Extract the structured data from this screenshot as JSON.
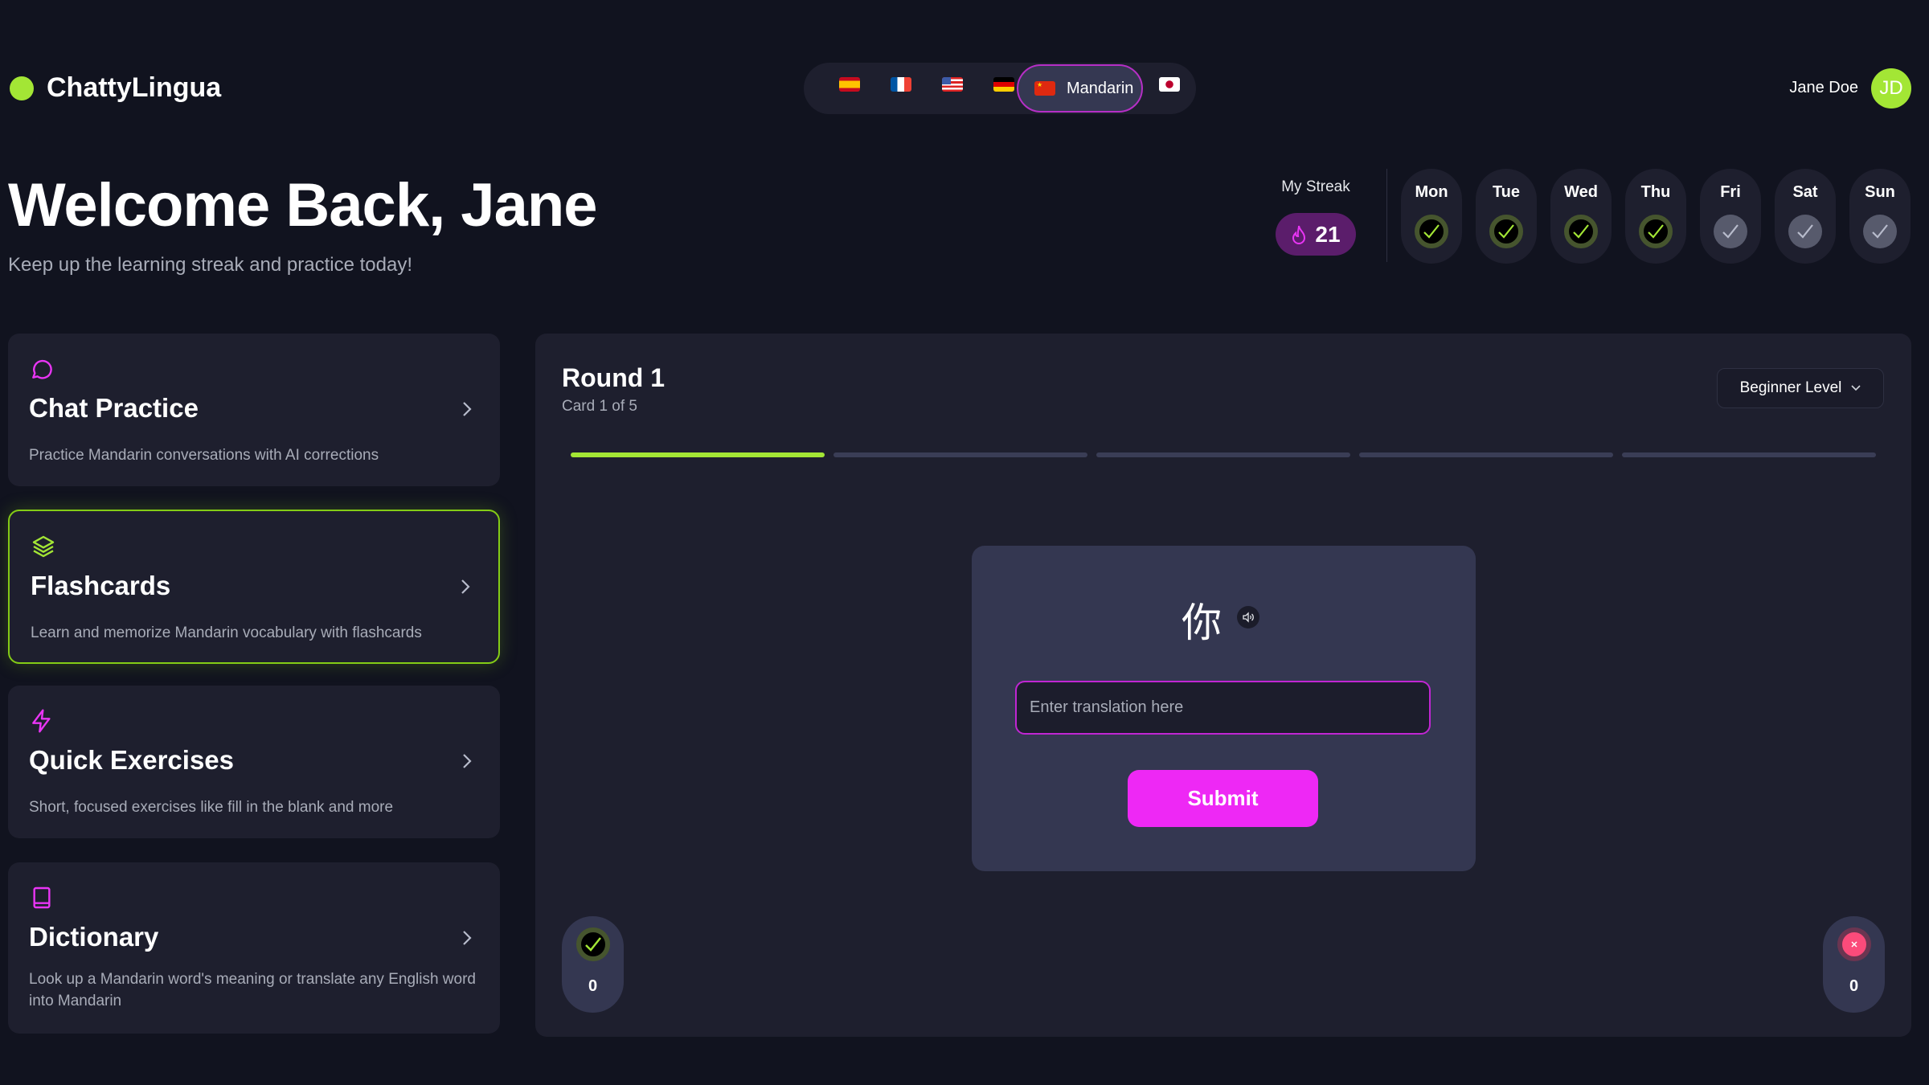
{
  "app": {
    "name": "ChattyLingua",
    "accent": "#a3e635",
    "brand_pink": "#ee28f5"
  },
  "languages": [
    {
      "flag": "spain-flag-icon"
    },
    {
      "flag": "france-flag-icon"
    },
    {
      "flag": "usa-flag-icon"
    },
    {
      "flag": "germany-flag-icon"
    },
    {
      "flag": "china-flag-icon",
      "label": "Mandarin",
      "active": true
    },
    {
      "flag": "japan-flag-icon"
    }
  ],
  "user": {
    "name": "Jane Doe",
    "initials": "JD"
  },
  "hero": {
    "title": "Welcome Back, Jane",
    "subtitle": "Keep up the learning streak and practice today!"
  },
  "streak": {
    "label": "My Streak",
    "count": "21",
    "days": [
      {
        "day": "Mon",
        "done": true
      },
      {
        "day": "Tue",
        "done": true
      },
      {
        "day": "Wed",
        "done": true
      },
      {
        "day": "Thu",
        "done": true
      },
      {
        "day": "Fri",
        "done": false
      },
      {
        "day": "Sat",
        "done": false
      },
      {
        "day": "Sun",
        "done": false
      }
    ]
  },
  "sidebar": {
    "items": [
      {
        "title": "Chat Practice",
        "desc": "Practice Mandarin conversations with AI corrections",
        "icon": "chat-bubble-icon"
      },
      {
        "title": "Flashcards",
        "desc": "Learn and memorize Mandarin vocabulary with flashcards",
        "icon": "layers-icon",
        "active": true
      },
      {
        "title": "Quick Exercises",
        "desc": "Short, focused exercises like fill in the blank and more",
        "icon": "lightning-icon"
      },
      {
        "title": "Dictionary",
        "desc": "Look up a Mandarin word's meaning or translate any English word into Mandarin",
        "icon": "book-icon"
      }
    ]
  },
  "practice": {
    "round": "Round 1",
    "card_progress": "Card 1 of 5",
    "current_card": 1,
    "total_cards": 5,
    "level": "Beginner Level",
    "flashcard": {
      "character": "你",
      "placeholder": "Enter translation here",
      "value": "",
      "submit": "Submit"
    },
    "correct_count": "0",
    "wrong_count": "0"
  }
}
